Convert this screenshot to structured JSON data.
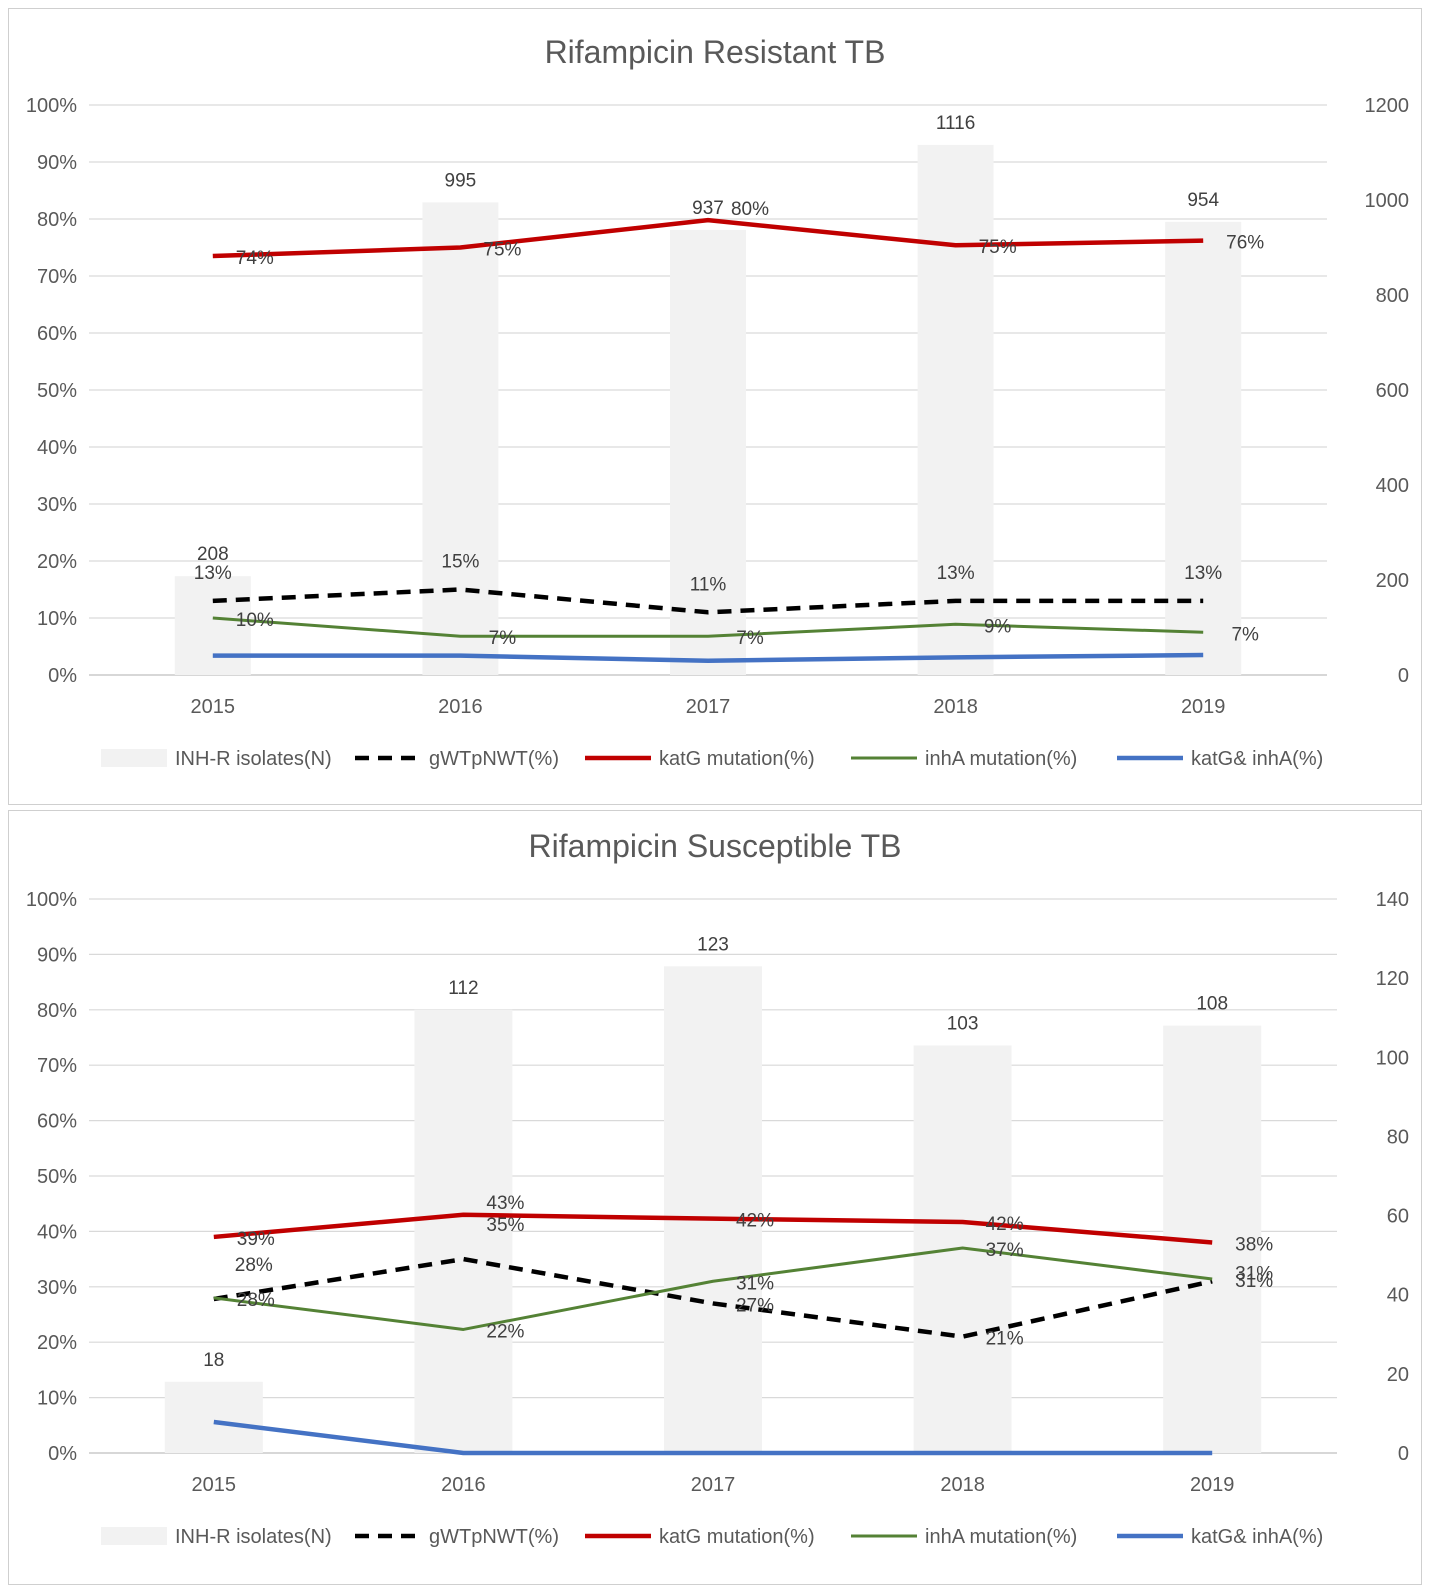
{
  "chart_data": [
    {
      "type": "bar",
      "title": "Rifampicin Resistant TB",
      "categories": [
        "2015",
        "2016",
        "2017",
        "2018",
        "2019"
      ],
      "y_left": {
        "range": [
          0,
          100
        ],
        "ticks": [
          "0%",
          "10%",
          "20%",
          "30%",
          "40%",
          "50%",
          "60%",
          "70%",
          "80%",
          "90%",
          "100%"
        ]
      },
      "y_right": {
        "range": [
          0,
          1200
        ],
        "ticks": [
          "0",
          "200",
          "400",
          "600",
          "800",
          "1000",
          "1200"
        ]
      },
      "grid": true,
      "legend_position": "bottom",
      "bars": {
        "name": "INH-R isolates(N)",
        "axis": "right",
        "color": "#f2f2f2",
        "values": [
          208,
          995,
          937,
          1116,
          954
        ],
        "labels": [
          "208",
          "995",
          "937",
          "1116",
          "954"
        ]
      },
      "series": [
        {
          "name": "gWTpNWT(%)",
          "axis": "left",
          "color": "#000000",
          "dash": true,
          "values": [
            13,
            15,
            11,
            13,
            13
          ],
          "labels": [
            "13%",
            "15%",
            "11%",
            "13%",
            "13%"
          ]
        },
        {
          "name": "katG mutation(%)",
          "axis": "left",
          "color": "#c00000",
          "values": [
            73.5,
            75,
            79.8,
            75.4,
            76.2
          ],
          "labels": [
            "74%",
            "75%",
            "80%",
            "75%",
            "76%"
          ]
        },
        {
          "name": "inhA mutation(%)",
          "axis": "left",
          "color": "#548235",
          "values": [
            10,
            6.8,
            6.8,
            8.9,
            7.5
          ],
          "labels": [
            "10%",
            "7%",
            "7%",
            "9%",
            "7%"
          ]
        },
        {
          "name": "katG& inhA(%)",
          "axis": "left",
          "color": "#4472c4",
          "values": [
            3.4,
            3.4,
            2.5,
            3.1,
            3.5
          ],
          "labels": []
        }
      ]
    },
    {
      "type": "bar",
      "title": "Rifampicin Susceptible TB",
      "categories": [
        "2015",
        "2016",
        "2017",
        "2018",
        "2019"
      ],
      "y_left": {
        "range": [
          0,
          100
        ],
        "ticks": [
          "0%",
          "10%",
          "20%",
          "30%",
          "40%",
          "50%",
          "60%",
          "70%",
          "80%",
          "90%",
          "100%"
        ]
      },
      "y_right": {
        "range": [
          0,
          140
        ],
        "ticks": [
          "0",
          "20",
          "40",
          "60",
          "80",
          "100",
          "120",
          "140"
        ]
      },
      "grid": true,
      "legend_position": "bottom",
      "bars": {
        "name": "INH-R isolates(N)",
        "axis": "right",
        "color": "#f2f2f2",
        "values": [
          18,
          112,
          123,
          103,
          108
        ],
        "labels": [
          "18",
          "112",
          "123",
          "103",
          "108"
        ]
      },
      "series": [
        {
          "name": "gWTpNWT(%)",
          "axis": "left",
          "color": "#000000",
          "dash": true,
          "values": [
            27.8,
            35,
            27,
            21,
            31
          ],
          "labels": [
            "28%",
            "35%",
            "27%",
            "21%",
            "31%"
          ]
        },
        {
          "name": "katG mutation(%)",
          "axis": "left",
          "color": "#c00000",
          "values": [
            39,
            43,
            42.3,
            41.7,
            38
          ],
          "labels": [
            "39%",
            "43%",
            "42%",
            "42%",
            "38%"
          ]
        },
        {
          "name": "inhA mutation(%)",
          "axis": "left",
          "color": "#548235",
          "values": [
            28,
            22.3,
            31,
            37,
            31.4
          ],
          "labels": [
            "28%",
            "22%",
            "31%",
            "37%",
            "31%"
          ]
        },
        {
          "name": "katG& inhA(%)",
          "axis": "left",
          "color": "#4472c4",
          "values": [
            5.6,
            0,
            0,
            0,
            0
          ],
          "labels": []
        }
      ]
    }
  ]
}
